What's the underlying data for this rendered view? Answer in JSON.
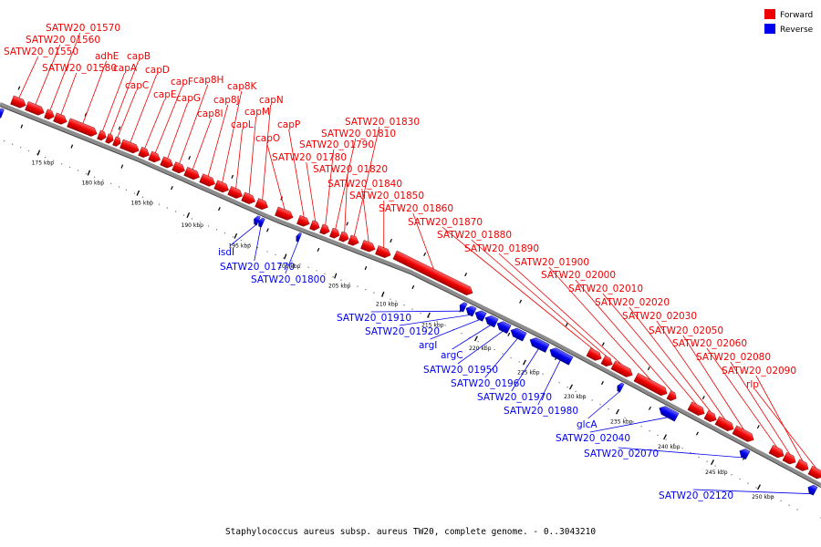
{
  "caption": "Staphylococcus aureus subsp. aureus TW20, complete genome. - 0..3043210",
  "legend": [
    {
      "label": "Forward",
      "color": "#ee0000"
    },
    {
      "label": "Reverse",
      "color": "#0000ee"
    }
  ],
  "colors": {
    "forward": "#ee0000",
    "reverse": "#0000ee",
    "backbone": "#888888"
  },
  "scale_ticks": [
    "175 kbp",
    "180 kbp",
    "185 kbp",
    "190 kbp",
    "195 kbp",
    "200 kbp",
    "205 kbp",
    "210 kbp",
    "215 kbp",
    "220 kbp",
    "225 kbp",
    "230 kbp",
    "235 kbp",
    "240 kbp",
    "245 kbp",
    "250 kbp"
  ],
  "forward_genes": [
    "SATW20_01570",
    "SATW20_01560",
    "SATW20_01550",
    "SATW20_01580",
    "adhE",
    "capA",
    "capB",
    "capC",
    "capD",
    "capE",
    "capF",
    "capG",
    "cap8H",
    "cap8I",
    "cap8J",
    "cap8K",
    "capL",
    "capM",
    "capN",
    "capO",
    "capP",
    "SATW20_01780",
    "SATW20_01790",
    "SATW20_01810",
    "SATW20_01830",
    "SATW20_01820",
    "SATW20_01840",
    "SATW20_01850",
    "SATW20_01860",
    "SATW20_01870",
    "SATW20_01880",
    "SATW20_01890",
    "SATW20_01900",
    "SATW20_02000",
    "SATW20_02010",
    "SATW20_02020",
    "SATW20_02030",
    "SATW20_02050",
    "SATW20_02060",
    "SATW20_02080",
    "SATW20_02090",
    "rlp"
  ],
  "reverse_genes": [
    "isdI",
    "SATW20_01770",
    "SATW20_01800",
    "SATW20_01910",
    "SATW20_01920",
    "argI",
    "argC",
    "SATW20_01950",
    "SATW20_01960",
    "SATW20_01970",
    "SATW20_01980",
    "glcA",
    "SATW20_02040",
    "SATW20_02070",
    "SATW20_02120"
  ]
}
